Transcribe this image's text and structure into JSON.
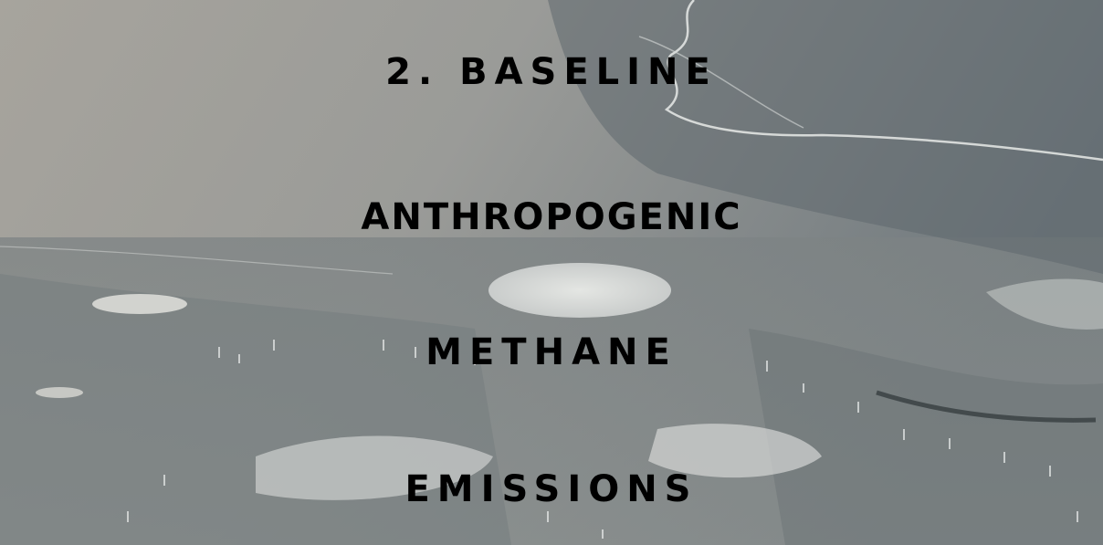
{
  "slide": {
    "title_lines": [
      "2. BASELINE",
      "ANTHROPOGENIC",
      "METHANE",
      "EMISSIONS"
    ],
    "background": "frozen lake ice with trapped methane bubbles",
    "text_color": "#000000"
  }
}
